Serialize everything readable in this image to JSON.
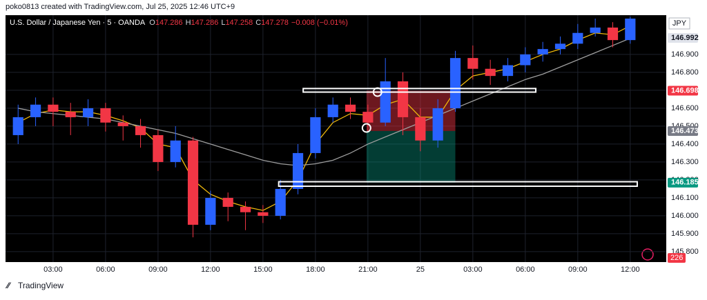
{
  "header": {
    "credit": "poko0813 created with TradingView.com, Jul 25, 2025 12:46 UTC+9"
  },
  "footer": {
    "brand": "TradingView"
  },
  "chart_data": {
    "type": "candlestick",
    "title": "U.S. Dollar / Japanese Yen · 5 · OANDA",
    "quote": [
      {
        "label": "O",
        "value": "147.286"
      },
      {
        "label": "H",
        "value": "147.286"
      },
      {
        "label": "L",
        "value": "147.258"
      },
      {
        "label": "C",
        "value": "147.278"
      }
    ],
    "change": "−0.008 (−0.01%)",
    "currency": "JPY",
    "up_color": "#2962ff",
    "down_color": "#f23645",
    "x": [
      1,
      2,
      3,
      4,
      5,
      6,
      7,
      8,
      9,
      10,
      11,
      12,
      13,
      14,
      15,
      16,
      17,
      18,
      19,
      20,
      21,
      22,
      23,
      24,
      25,
      26,
      27,
      28,
      29,
      30,
      31,
      32,
      33,
      34,
      35,
      36
    ],
    "open": [
      146.45,
      146.55,
      146.62,
      146.58,
      146.55,
      146.6,
      146.52,
      146.5,
      146.45,
      146.3,
      146.42,
      145.95,
      146.1,
      146.05,
      146.02,
      146.0,
      146.15,
      146.35,
      146.55,
      146.62,
      146.58,
      146.52,
      146.75,
      146.55,
      146.42,
      146.6,
      146.88,
      146.82,
      146.78,
      146.84,
      146.9,
      146.93,
      146.96,
      147.02,
      147.05,
      146.98
    ],
    "high": [
      146.62,
      146.66,
      146.66,
      146.63,
      146.65,
      146.63,
      146.56,
      146.54,
      146.48,
      146.5,
      146.44,
      146.14,
      146.13,
      146.08,
      146.06,
      146.2,
      146.4,
      146.6,
      146.66,
      146.66,
      146.62,
      146.88,
      146.8,
      146.6,
      146.65,
      146.92,
      146.95,
      146.87,
      146.88,
      146.94,
      146.97,
      147.0,
      147.07,
      147.1,
      147.08,
      147.11
    ],
    "low": [
      146.4,
      146.5,
      146.5,
      146.45,
      146.5,
      146.47,
      146.42,
      146.38,
      146.25,
      146.27,
      145.88,
      145.92,
      145.97,
      145.92,
      145.96,
      145.98,
      146.12,
      146.32,
      146.52,
      146.54,
      146.47,
      146.5,
      146.45,
      146.36,
      146.38,
      146.58,
      146.76,
      146.73,
      146.75,
      146.8,
      146.86,
      146.9,
      146.93,
      147.0,
      146.94,
      146.96
    ],
    "close": [
      146.55,
      146.62,
      146.58,
      146.55,
      146.6,
      146.52,
      146.5,
      146.45,
      146.3,
      146.42,
      145.95,
      146.1,
      146.05,
      146.02,
      146.0,
      146.15,
      146.35,
      146.55,
      146.62,
      146.58,
      146.52,
      146.75,
      146.55,
      146.42,
      146.6,
      146.88,
      146.82,
      146.78,
      146.84,
      146.9,
      146.93,
      146.96,
      147.02,
      147.05,
      146.98,
      147.1
    ],
    "moving_averages": [
      {
        "color": "#f0b90b",
        "values": [
          146.52,
          146.57,
          146.59,
          146.58,
          146.58,
          146.56,
          146.53,
          146.49,
          146.4,
          146.38,
          146.2,
          146.12,
          146.08,
          146.05,
          146.03,
          146.08,
          146.2,
          146.4,
          146.52,
          146.57,
          146.56,
          146.62,
          146.65,
          146.55,
          146.55,
          146.7,
          146.78,
          146.8,
          146.82,
          146.86,
          146.9,
          146.93,
          146.98,
          147.02,
          147.01,
          147.06
        ]
      },
      {
        "color": "#9e9e9e",
        "values": [
          146.6,
          146.58,
          146.57,
          146.56,
          146.55,
          146.54,
          146.52,
          146.5,
          146.48,
          146.46,
          146.43,
          146.4,
          146.37,
          146.34,
          146.31,
          146.29,
          146.28,
          146.29,
          146.31,
          146.35,
          146.4,
          146.44,
          146.48,
          146.52,
          146.56,
          146.6,
          146.64,
          146.68,
          146.72,
          146.76,
          146.79,
          146.83,
          146.87,
          146.91,
          146.95,
          146.99
        ]
      }
    ],
    "xlim": [
      0.28,
      38.06
    ],
    "xticks": [
      {
        "value": 3,
        "label": "03:00"
      },
      {
        "value": 6,
        "label": "06:00"
      },
      {
        "value": 9,
        "label": "09:00"
      },
      {
        "value": 12,
        "label": "12:00"
      },
      {
        "value": 15,
        "label": "15:00"
      },
      {
        "value": 18,
        "label": "18:00"
      },
      {
        "value": 21,
        "label": "21:00"
      },
      {
        "value": 24,
        "label": "25"
      },
      {
        "value": 27,
        "label": "03:00"
      },
      {
        "value": 30,
        "label": "06:00"
      },
      {
        "value": 33,
        "label": "09:00"
      },
      {
        "value": 36,
        "label": "12:00"
      }
    ],
    "ylim": [
      145.742,
      147.119
    ],
    "yticks": [
      {
        "value": 145.8,
        "label": "145.800"
      },
      {
        "value": 145.9,
        "label": "145.900"
      },
      {
        "value": 146.0,
        "label": "146.000"
      },
      {
        "value": 146.1,
        "label": "146.100"
      },
      {
        "value": 146.2,
        "label": "146.200"
      },
      {
        "value": 146.3,
        "label": "146.300"
      },
      {
        "value": 146.4,
        "label": "146.400"
      },
      {
        "value": 146.5,
        "label": "146.500"
      },
      {
        "value": 146.6,
        "label": "146.600"
      },
      {
        "value": 146.7,
        "label": "146.700"
      },
      {
        "value": 146.8,
        "label": "146.800"
      },
      {
        "value": 146.9,
        "label": "146.900"
      }
    ],
    "grid": true,
    "price_labels": [
      {
        "value": 146.992,
        "label": "146.992",
        "color": "#e0e3eb",
        "text_color": "#131722"
      },
      {
        "value": 146.698,
        "label": "146.698",
        "color": "#f23645",
        "text_color": "#ffffff"
      },
      {
        "value": 146.473,
        "label": "146.473",
        "color": "#787b86",
        "text_color": "#ffffff"
      },
      {
        "value": 146.185,
        "label": "146.185",
        "color": "#089981",
        "text_color": "#ffffff"
      }
    ],
    "volume_label": "226",
    "boxes": [
      {
        "x": [
          17.3,
          30.6
        ],
        "y": [
          146.69,
          146.71
        ]
      },
      {
        "x": [
          15.9,
          36.4
        ],
        "y": [
          146.165,
          146.19
        ]
      }
    ],
    "position": {
      "x": [
        20.92,
        26.0
      ],
      "stop": 146.698,
      "entry": 146.473,
      "target": 146.185
    },
    "circles": [
      {
        "x": 21.55,
        "y": 146.69
      },
      {
        "x": 20.92,
        "y": 146.49
      }
    ]
  }
}
